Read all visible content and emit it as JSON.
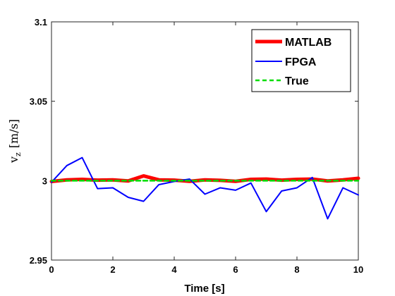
{
  "chart_data": {
    "type": "line",
    "title": "",
    "xlabel": "Time [s]",
    "ylabel_main": "v",
    "ylabel_sub": "z",
    "ylabel_units": "[m/s]",
    "xlim": [
      0,
      10
    ],
    "ylim": [
      2.95,
      3.1
    ],
    "xticks": [
      0,
      2,
      4,
      6,
      8,
      10
    ],
    "yticks": [
      2.95,
      3,
      3.05,
      3.1
    ],
    "xtick_labels": [
      "0",
      "2",
      "4",
      "6",
      "8",
      "10"
    ],
    "ytick_labels": [
      "2.95",
      "3",
      "3.05",
      "3.1"
    ],
    "grid": false,
    "legend_position": "top-right",
    "series": [
      {
        "name": "MATLAB",
        "color": "#ff0000",
        "style": "solid-thick",
        "x": [
          0,
          0.5,
          1,
          1.5,
          2,
          2.5,
          3,
          3.5,
          4,
          4.5,
          5,
          5.5,
          6,
          6.5,
          7,
          7.5,
          8,
          8.5,
          9,
          9.5,
          10
        ],
        "y": [
          2.9995,
          3.0005,
          3.0008,
          3.0003,
          3.0005,
          2.9998,
          3.003,
          3.0005,
          3.0003,
          2.9996,
          3.0005,
          3.0002,
          2.9996,
          3.0008,
          3.001,
          3.0003,
          3.0008,
          3.001,
          2.9998,
          3.0005,
          3.0015
        ]
      },
      {
        "name": "FPGA",
        "color": "#0000ff",
        "style": "solid",
        "x": [
          0,
          0.5,
          1,
          1.5,
          2,
          2.5,
          3,
          3.5,
          4,
          4.5,
          5,
          5.5,
          6,
          6.5,
          7,
          7.5,
          8,
          8.5,
          9,
          9.5,
          10
        ],
        "y": [
          2.999,
          3.0095,
          3.0145,
          2.995,
          2.9955,
          2.9895,
          2.987,
          2.9975,
          2.9995,
          3.001,
          2.9915,
          2.9955,
          2.994,
          2.9985,
          2.9805,
          2.9935,
          2.9955,
          3.002,
          2.976,
          2.9955,
          2.991
        ]
      },
      {
        "name": "True",
        "color": "#00dd00",
        "style": "dashed",
        "x": [
          0,
          10
        ],
        "y": [
          3,
          3
        ]
      }
    ]
  }
}
